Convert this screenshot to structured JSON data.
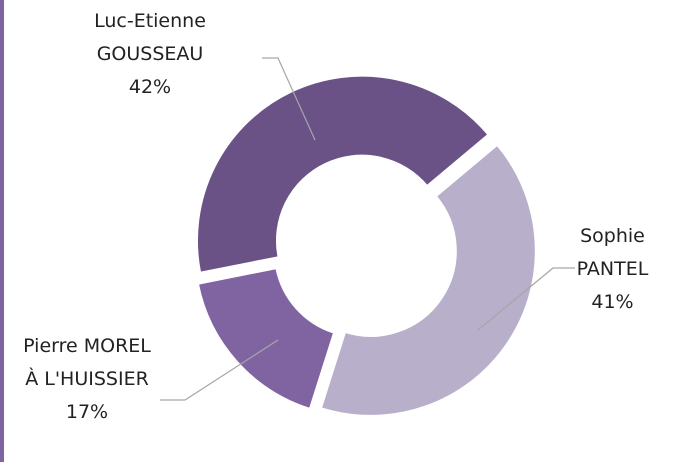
{
  "chart_data": {
    "type": "pie",
    "categories": [
      "Sophie PANTEL",
      "Pierre MOREL À L'HUISSIER",
      "Luc-Etienne GOUSSEAU"
    ],
    "values": [
      41,
      17,
      42
    ],
    "value_labels": [
      "41%",
      "17%",
      "42%"
    ],
    "colors": [
      "#b8afca",
      "#8064a2",
      "#6a5287"
    ],
    "donut": true
  }
}
